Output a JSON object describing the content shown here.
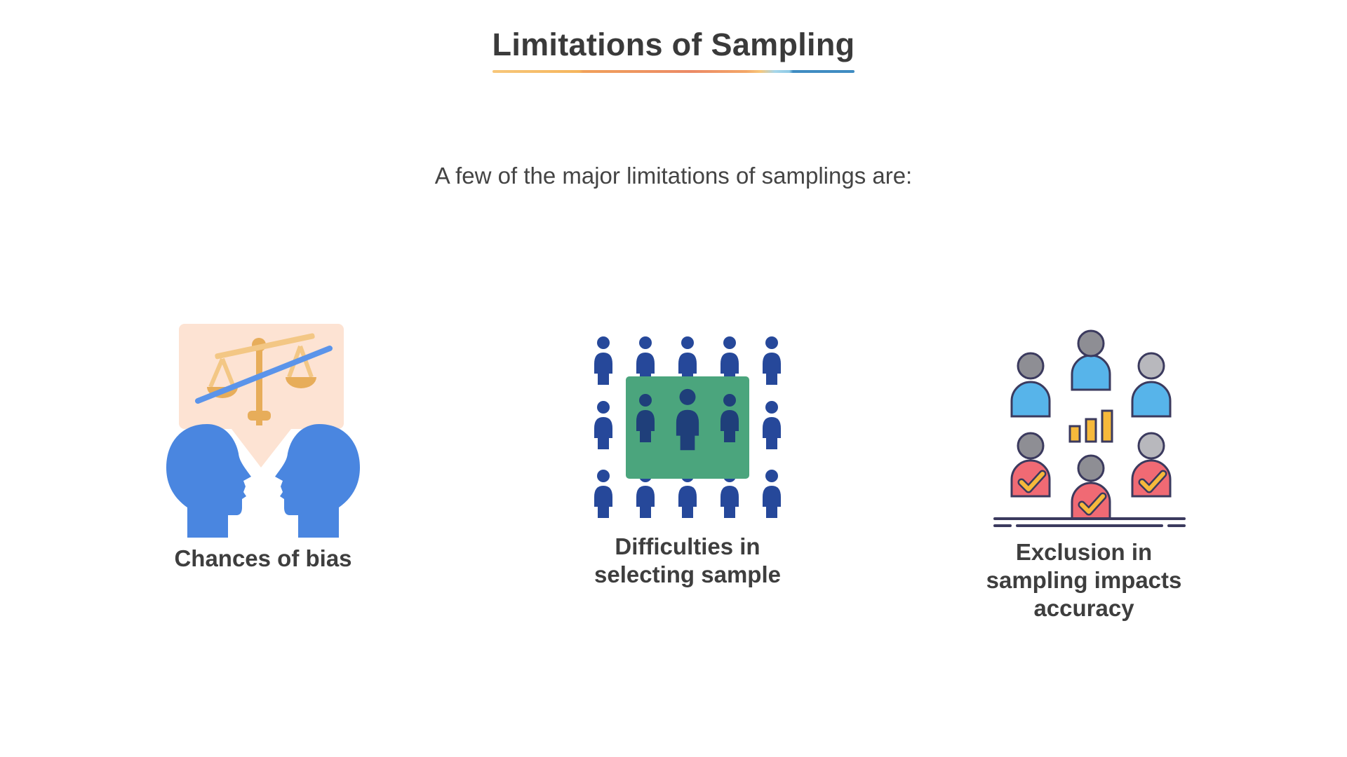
{
  "slide": {
    "title": "Limitations of Sampling",
    "subtitle": "A few of the major limitations of samplings are:"
  },
  "items": [
    {
      "label": "Chances of bias",
      "icon": "bias-heads-scale-icon"
    },
    {
      "label": "Difficulties in selecting sample",
      "icon": "crowd-selection-icon"
    },
    {
      "label": "Exclusion in sampling impacts accuracy",
      "icon": "people-chart-accuracy-icon"
    }
  ],
  "colors": {
    "title_text": "#3a3a3a",
    "head_blue": "#4a86e0",
    "scale_gold": "#e7ad5a",
    "bubble_peach": "#fde3d3",
    "crowd_navy": "#26489a",
    "selection_green": "#4ba57d",
    "person_blue": "#57b4ea",
    "person_red": "#f06a74",
    "check_yellow": "#f6b93b"
  }
}
